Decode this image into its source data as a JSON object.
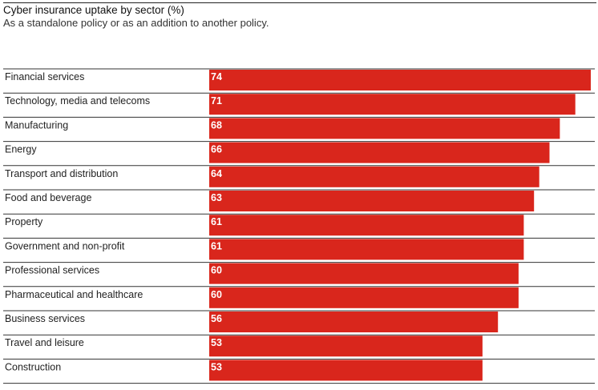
{
  "chart_data": {
    "type": "bar",
    "orientation": "horizontal",
    "title": "Cyber insurance uptake by sector (%)",
    "subtitle": "As a standalone policy or as an addition to another policy.",
    "categories": [
      "Financial services",
      "Technology, media and telecoms",
      "Manufacturing",
      "Energy",
      "Transport and distribution",
      "Food and beverage",
      "Property",
      "Government and non-profit",
      "Professional services",
      "Pharmaceutical and healthcare",
      "Business services",
      "Travel and leisure",
      "Construction"
    ],
    "values": [
      74,
      71,
      68,
      66,
      64,
      63,
      61,
      61,
      60,
      60,
      56,
      53,
      53
    ],
    "xlim": [
      0,
      74
    ],
    "grid": false,
    "data_labels": true,
    "bar_color": "#d9261c",
    "label_color": "#ffffff"
  }
}
